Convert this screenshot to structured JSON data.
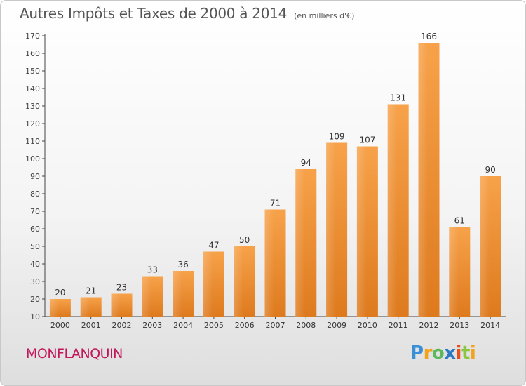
{
  "title": "Autres Impôts et Taxes de 2000 à 2014",
  "title_unit": "(en milliers d'€)",
  "city": "MONFLANQUIN",
  "brand": {
    "letters": [
      "P",
      "r",
      "o",
      "x",
      "i",
      "t",
      "i"
    ],
    "colors": [
      "#3b8fd6",
      "#f2a21b",
      "#5cb85c",
      "#2b79c2",
      "#e94e1b",
      "#8cc63f",
      "#f2a21b"
    ]
  },
  "chart_data": {
    "type": "bar",
    "categories": [
      "2000",
      "2001",
      "2002",
      "2003",
      "2004",
      "2005",
      "2006",
      "2007",
      "2008",
      "2009",
      "2010",
      "2011",
      "2012",
      "2013",
      "2014"
    ],
    "values": [
      20,
      21,
      23,
      33,
      36,
      47,
      50,
      71,
      94,
      109,
      107,
      131,
      166,
      61,
      90
    ],
    "ylim": [
      10,
      170
    ],
    "yticks": [
      10,
      20,
      30,
      40,
      50,
      60,
      70,
      80,
      90,
      100,
      110,
      120,
      130,
      140,
      150,
      160,
      170
    ],
    "bar_color": "#f0922e",
    "grid": false
  }
}
